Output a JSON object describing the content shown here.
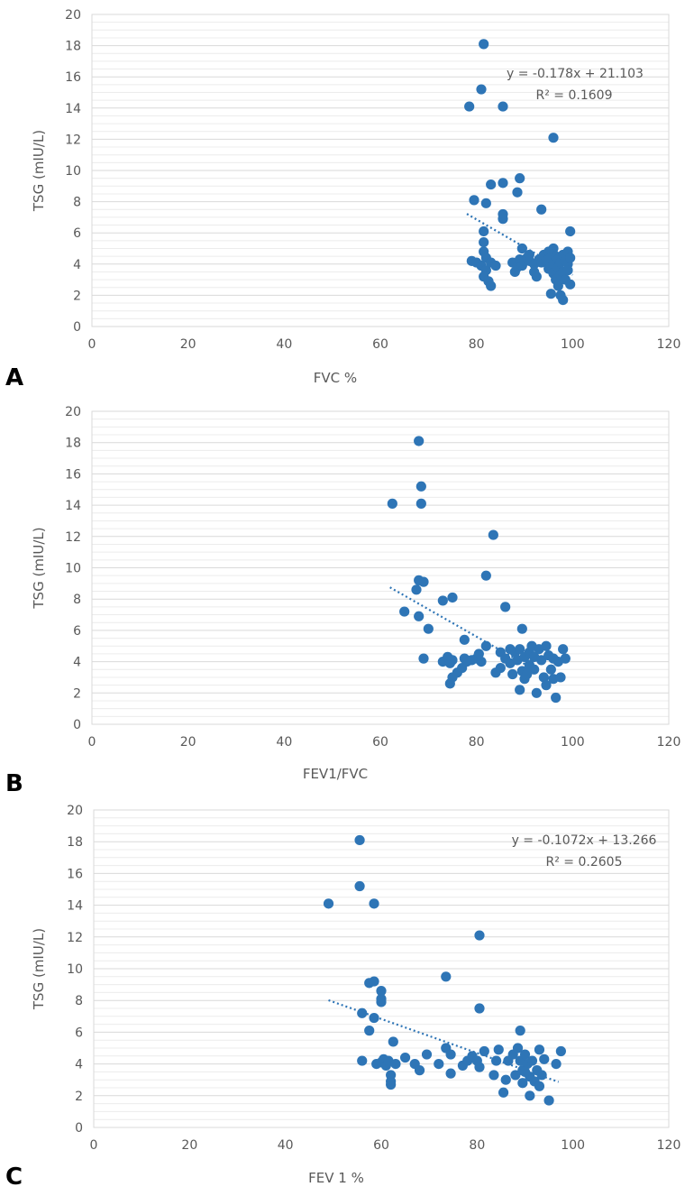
{
  "chart_data": [
    {
      "type": "scatter",
      "panel_label": "A",
      "xlabel": "FVC %",
      "ylabel": "TSG (mIU/L)",
      "xlim": [
        0,
        120
      ],
      "ylim": [
        0,
        20
      ],
      "x_ticks": [
        "0",
        "20",
        "40",
        "60",
        "80",
        "100",
        "120"
      ],
      "y_ticks": [
        "0",
        "2",
        "4",
        "6",
        "8",
        "10",
        "12",
        "14",
        "16",
        "18",
        "20"
      ],
      "equation": "y = -0.178x + 21.103",
      "r_squared": "R² = 0.1609",
      "trendline": {
        "slope": -0.178,
        "intercept": 21.103,
        "x_range": [
          78,
          100
        ]
      },
      "points": [
        [
          81.5,
          18.1
        ],
        [
          81,
          15.2
        ],
        [
          78.5,
          14.1
        ],
        [
          85.5,
          14.1
        ],
        [
          96,
          12.1
        ],
        [
          89,
          9.5
        ],
        [
          85.5,
          9.2
        ],
        [
          83,
          9.1
        ],
        [
          79.5,
          8.1
        ],
        [
          82,
          7.9
        ],
        [
          88.5,
          8.6
        ],
        [
          85.5,
          7.2
        ],
        [
          85.5,
          6.9
        ],
        [
          93.5,
          7.5
        ],
        [
          99.5,
          6.1
        ],
        [
          81.5,
          6.1
        ],
        [
          81.5,
          5.4
        ],
        [
          89.5,
          5.0
        ],
        [
          91,
          4.6
        ],
        [
          96,
          5.0
        ],
        [
          79,
          4.2
        ],
        [
          80,
          4.1
        ],
        [
          81,
          3.9
        ],
        [
          81.5,
          4.8
        ],
        [
          82,
          4.4
        ],
        [
          82,
          3.6
        ],
        [
          83,
          4.1
        ],
        [
          84,
          3.9
        ],
        [
          81.5,
          3.2
        ],
        [
          82.5,
          2.9
        ],
        [
          83,
          2.6
        ],
        [
          87.5,
          4.1
        ],
        [
          88,
          3.5
        ],
        [
          88.5,
          3.8
        ],
        [
          89,
          4.3
        ],
        [
          89.5,
          3.9
        ],
        [
          90,
          4.2
        ],
        [
          90.5,
          4.4
        ],
        [
          91,
          4.2
        ],
        [
          92,
          4.0
        ],
        [
          92.5,
          3.2
        ],
        [
          93,
          4.3
        ],
        [
          93.5,
          4.1
        ],
        [
          94,
          4.6
        ],
        [
          94.5,
          4.2
        ],
        [
          95,
          3.7
        ],
        [
          95,
          4.8
        ],
        [
          95.5,
          4.4
        ],
        [
          96,
          4.0
        ],
        [
          96,
          3.4
        ],
        [
          96.5,
          4.5
        ],
        [
          96.5,
          3.0
        ],
        [
          97,
          4.3
        ],
        [
          97,
          3.8
        ],
        [
          97,
          2.6
        ],
        [
          97.5,
          4.1
        ],
        [
          97.5,
          3.3
        ],
        [
          97.5,
          2.0
        ],
        [
          98,
          4.6
        ],
        [
          98,
          3.5
        ],
        [
          98,
          1.7
        ],
        [
          98.5,
          4.2
        ],
        [
          98.5,
          3.0
        ],
        [
          99,
          4.8
        ],
        [
          99,
          4.0
        ],
        [
          99,
          3.6
        ],
        [
          99.5,
          2.7
        ],
        [
          99.5,
          4.4
        ],
        [
          95.5,
          2.1
        ],
        [
          92,
          3.5
        ]
      ]
    },
    {
      "type": "scatter",
      "panel_label": "B",
      "xlabel": "FEV1/FVC",
      "ylabel": "TSG (mIU/L)",
      "xlim": [
        0,
        120
      ],
      "ylim": [
        0,
        20
      ],
      "x_ticks": [
        "0",
        "20",
        "40",
        "60",
        "80",
        "100",
        "120"
      ],
      "y_ticks": [
        "0",
        "2",
        "4",
        "6",
        "8",
        "10",
        "12",
        "14",
        "16",
        "18",
        "20"
      ],
      "equation": "",
      "r_squared": "",
      "trendline": {
        "slope": -0.175,
        "intercept": 19.6,
        "x_range": [
          62,
          90
        ]
      },
      "points": [
        [
          68,
          18.1
        ],
        [
          68.5,
          15.2
        ],
        [
          62.5,
          14.1
        ],
        [
          68.5,
          14.1
        ],
        [
          83.5,
          12.1
        ],
        [
          82,
          9.5
        ],
        [
          68,
          9.2
        ],
        [
          69,
          9.1
        ],
        [
          67.5,
          8.6
        ],
        [
          75,
          8.1
        ],
        [
          73,
          7.9
        ],
        [
          86,
          7.5
        ],
        [
          65,
          7.2
        ],
        [
          68,
          6.9
        ],
        [
          70,
          6.1
        ],
        [
          89.5,
          6.1
        ],
        [
          77.5,
          5.4
        ],
        [
          82,
          5.0
        ],
        [
          69,
          4.2
        ],
        [
          73,
          4.0
        ],
        [
          74,
          4.3
        ],
        [
          74.5,
          3.9
        ],
        [
          75,
          4.1
        ],
        [
          75,
          3.0
        ],
        [
          74.5,
          2.6
        ],
        [
          76,
          3.3
        ],
        [
          77,
          3.6
        ],
        [
          77.5,
          4.2
        ],
        [
          78,
          4.0
        ],
        [
          79,
          4.1
        ],
        [
          80,
          4.2
        ],
        [
          81,
          4.0
        ],
        [
          80.5,
          4.5
        ],
        [
          84,
          3.3
        ],
        [
          85,
          4.6
        ],
        [
          85,
          3.6
        ],
        [
          86,
          4.2
        ],
        [
          87,
          3.9
        ],
        [
          87.5,
          3.2
        ],
        [
          88,
          4.6
        ],
        [
          88.5,
          4.1
        ],
        [
          89,
          4.8
        ],
        [
          89,
          2.2
        ],
        [
          89.5,
          3.4
        ],
        [
          90,
          4.3
        ],
        [
          90,
          2.9
        ],
        [
          91,
          4.6
        ],
        [
          91,
          3.8
        ],
        [
          91.5,
          5.0
        ],
        [
          92,
          4.3
        ],
        [
          92,
          3.5
        ],
        [
          92.5,
          2.0
        ],
        [
          93,
          4.8
        ],
        [
          93.5,
          4.1
        ],
        [
          94,
          3.0
        ],
        [
          94.5,
          5.0
        ],
        [
          94.5,
          2.5
        ],
        [
          95,
          4.4
        ],
        [
          95.5,
          3.5
        ],
        [
          96,
          4.2
        ],
        [
          96,
          2.9
        ],
        [
          96.5,
          1.7
        ],
        [
          97,
          4.0
        ],
        [
          97.5,
          3.0
        ],
        [
          98,
          4.8
        ],
        [
          98.5,
          4.2
        ],
        [
          90.5,
          3.2
        ],
        [
          87,
          4.8
        ]
      ]
    },
    {
      "type": "scatter",
      "panel_label": "C",
      "xlabel": "FEV 1 %",
      "ylabel": "TSG (mIU/L)",
      "xlim": [
        0,
        120
      ],
      "ylim": [
        0,
        20
      ],
      "x_ticks": [
        "0",
        "20",
        "40",
        "60",
        "80",
        "100",
        "120"
      ],
      "y_ticks": [
        "0",
        "2",
        "4",
        "6",
        "8",
        "10",
        "12",
        "14",
        "16",
        "18",
        "20"
      ],
      "equation": "y = -0.1072x + 13.266",
      "r_squared": "R² = 0.2605",
      "trendline": {
        "slope": -0.1072,
        "intercept": 13.266,
        "x_range": [
          49,
          97
        ]
      },
      "points": [
        [
          55.5,
          18.1
        ],
        [
          55.5,
          15.2
        ],
        [
          49,
          14.1
        ],
        [
          58.5,
          14.1
        ],
        [
          80.5,
          12.1
        ],
        [
          73.5,
          9.5
        ],
        [
          57.5,
          9.1
        ],
        [
          58.5,
          9.2
        ],
        [
          60,
          8.6
        ],
        [
          60,
          8.1
        ],
        [
          60,
          7.9
        ],
        [
          80.5,
          7.5
        ],
        [
          56,
          7.2
        ],
        [
          58.5,
          6.9
        ],
        [
          57.5,
          6.1
        ],
        [
          89,
          6.1
        ],
        [
          62.5,
          5.4
        ],
        [
          73.5,
          5.0
        ],
        [
          56,
          4.2
        ],
        [
          59,
          4.0
        ],
        [
          60,
          4.1
        ],
        [
          60.5,
          4.3
        ],
        [
          61,
          3.9
        ],
        [
          61.5,
          4.2
        ],
        [
          62,
          3.3
        ],
        [
          62,
          2.9
        ],
        [
          62,
          2.7
        ],
        [
          63,
          4.0
        ],
        [
          65,
          4.4
        ],
        [
          67,
          4.0
        ],
        [
          68,
          3.6
        ],
        [
          69.5,
          4.6
        ],
        [
          72,
          4.0
        ],
        [
          74.5,
          3.4
        ],
        [
          74.5,
          4.6
        ],
        [
          77,
          3.9
        ],
        [
          78,
          4.2
        ],
        [
          79,
          4.5
        ],
        [
          80,
          4.2
        ],
        [
          80.5,
          3.8
        ],
        [
          81.5,
          4.8
        ],
        [
          83.5,
          3.3
        ],
        [
          84,
          4.2
        ],
        [
          84.5,
          4.9
        ],
        [
          85.5,
          2.2
        ],
        [
          86,
          3.0
        ],
        [
          86.5,
          4.2
        ],
        [
          87.5,
          4.6
        ],
        [
          88,
          3.3
        ],
        [
          88.5,
          5.0
        ],
        [
          89,
          4.2
        ],
        [
          89.5,
          3.6
        ],
        [
          89.5,
          2.8
        ],
        [
          90,
          4.6
        ],
        [
          90.5,
          4.0
        ],
        [
          91,
          3.2
        ],
        [
          91,
          2.0
        ],
        [
          91.5,
          4.2
        ],
        [
          92,
          2.9
        ],
        [
          92.5,
          3.6
        ],
        [
          93,
          4.9
        ],
        [
          93,
          2.6
        ],
        [
          93.5,
          3.3
        ],
        [
          94,
          4.3
        ],
        [
          95,
          1.7
        ],
        [
          96.5,
          4.0
        ],
        [
          97.5,
          4.8
        ],
        [
          90,
          3.5
        ]
      ]
    }
  ]
}
